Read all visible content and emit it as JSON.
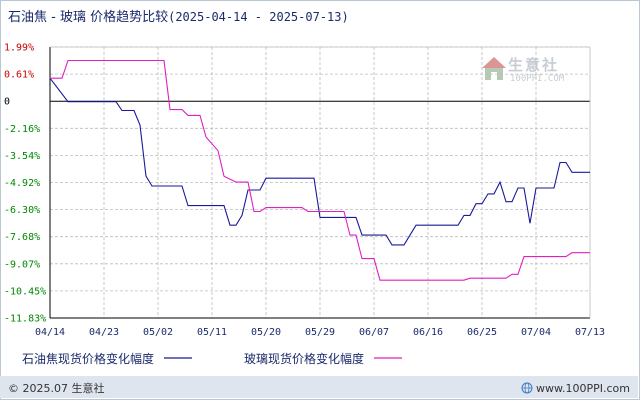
{
  "header": {
    "title": "石油焦 - 玻璃 价格趋势比较",
    "date_range": "(2025-04-14 - 2025-07-13)"
  },
  "watermark": {
    "name": "生意社",
    "url": "100PPI.COM",
    "icon": "house-logo-icon"
  },
  "legend": {
    "items": [
      {
        "label": "石油焦现货价格变化幅度",
        "color": "#1a1a99"
      },
      {
        "label": "玻璃现货价格变化幅度",
        "color": "#e020c0"
      }
    ]
  },
  "footer": {
    "left": "© 2025.07 生意社",
    "right": "www.100PPI.com",
    "icon": "globe-icon"
  },
  "colors": {
    "positive_tick": "#cc0000",
    "zero_tick": "#000000",
    "negative_tick": "#008800",
    "grid": "#bcbcbc",
    "axis": "#000000"
  },
  "chart_data": {
    "type": "line",
    "title": "",
    "xlabel": "",
    "ylabel": "",
    "x_ticks": [
      "04/14",
      "04/23",
      "05/02",
      "05/11",
      "05/20",
      "05/29",
      "06/07",
      "06/16",
      "06/25",
      "07/04",
      "07/13"
    ],
    "y_ticks": [
      "1.99%",
      "0.61%",
      "0",
      "-2.16%",
      "-3.54%",
      "-4.92%",
      "-6.30%",
      "-7.68%",
      "-9.07%",
      "-10.45%",
      "-11.83%"
    ],
    "ylim": [
      -11.83,
      1.99
    ],
    "x_range": [
      "2025-04-14",
      "2025-07-13"
    ],
    "grid": true,
    "series": [
      {
        "name": "石油焦现货价格变化幅度",
        "color": "#1a1a99",
        "points": [
          [
            "2025-04-14",
            0.4
          ],
          [
            "2025-04-17",
            -0.8
          ],
          [
            "2025-04-25",
            -0.8
          ],
          [
            "2025-04-26",
            -1.25
          ],
          [
            "2025-04-28",
            -1.25
          ],
          [
            "2025-04-29",
            -2.0
          ],
          [
            "2025-04-30",
            -4.6
          ],
          [
            "2025-05-01",
            -5.1
          ],
          [
            "2025-05-06",
            -5.1
          ],
          [
            "2025-05-07",
            -6.1
          ],
          [
            "2025-05-13",
            -6.1
          ],
          [
            "2025-05-14",
            -7.1
          ],
          [
            "2025-05-15",
            -7.1
          ],
          [
            "2025-05-16",
            -6.6
          ],
          [
            "2025-05-17",
            -5.3
          ],
          [
            "2025-05-19",
            -5.3
          ],
          [
            "2025-05-20",
            -4.7
          ],
          [
            "2025-05-28",
            -4.7
          ],
          [
            "2025-05-29",
            -6.7
          ],
          [
            "2025-06-04",
            -6.7
          ],
          [
            "2025-06-05",
            -7.6
          ],
          [
            "2025-06-09",
            -7.6
          ],
          [
            "2025-06-10",
            -8.1
          ],
          [
            "2025-06-12",
            -8.1
          ],
          [
            "2025-06-14",
            -7.1
          ],
          [
            "2025-06-21",
            -7.1
          ],
          [
            "2025-06-22",
            -6.6
          ],
          [
            "2025-06-23",
            -6.6
          ],
          [
            "2025-06-24",
            -6.0
          ],
          [
            "2025-06-25",
            -6.0
          ],
          [
            "2025-06-26",
            -5.5
          ],
          [
            "2025-06-27",
            -5.5
          ],
          [
            "2025-06-28",
            -4.9
          ],
          [
            "2025-06-29",
            -5.9
          ],
          [
            "2025-06-30",
            -5.9
          ],
          [
            "2025-07-01",
            -5.2
          ],
          [
            "2025-07-02",
            -5.2
          ],
          [
            "2025-07-03",
            -7.0
          ],
          [
            "2025-07-04",
            -5.2
          ],
          [
            "2025-07-07",
            -5.2
          ],
          [
            "2025-07-08",
            -3.9
          ],
          [
            "2025-07-09",
            -3.9
          ],
          [
            "2025-07-10",
            -4.4
          ],
          [
            "2025-07-13",
            -4.4
          ]
        ]
      },
      {
        "name": "玻璃现货价格变化幅度",
        "color": "#e020c0",
        "points": [
          [
            "2025-04-14",
            0.4
          ],
          [
            "2025-04-16",
            0.4
          ],
          [
            "2025-04-17",
            1.3
          ],
          [
            "2025-05-03",
            1.3
          ],
          [
            "2025-05-04",
            -1.2
          ],
          [
            "2025-05-06",
            -1.2
          ],
          [
            "2025-05-07",
            -1.5
          ],
          [
            "2025-05-09",
            -1.5
          ],
          [
            "2025-05-10",
            -2.6
          ],
          [
            "2025-05-12",
            -3.3
          ],
          [
            "2025-05-13",
            -4.6
          ],
          [
            "2025-05-15",
            -4.9
          ],
          [
            "2025-05-16",
            -4.9
          ],
          [
            "2025-05-17",
            -4.9
          ],
          [
            "2025-05-18",
            -6.4
          ],
          [
            "2025-05-19",
            -6.4
          ],
          [
            "2025-05-20",
            -6.2
          ],
          [
            "2025-05-26",
            -6.2
          ],
          [
            "2025-05-27",
            -6.4
          ],
          [
            "2025-06-02",
            -6.4
          ],
          [
            "2025-06-03",
            -7.6
          ],
          [
            "2025-06-04",
            -7.6
          ],
          [
            "2025-06-05",
            -8.8
          ],
          [
            "2025-06-07",
            -8.8
          ],
          [
            "2025-06-08",
            -9.9
          ],
          [
            "2025-06-22",
            -9.9
          ],
          [
            "2025-06-23",
            -9.8
          ],
          [
            "2025-06-29",
            -9.8
          ],
          [
            "2025-06-30",
            -9.6
          ],
          [
            "2025-07-01",
            -9.6
          ],
          [
            "2025-07-02",
            -8.7
          ],
          [
            "2025-07-09",
            -8.7
          ],
          [
            "2025-07-10",
            -8.5
          ],
          [
            "2025-07-13",
            -8.5
          ]
        ]
      }
    ]
  }
}
